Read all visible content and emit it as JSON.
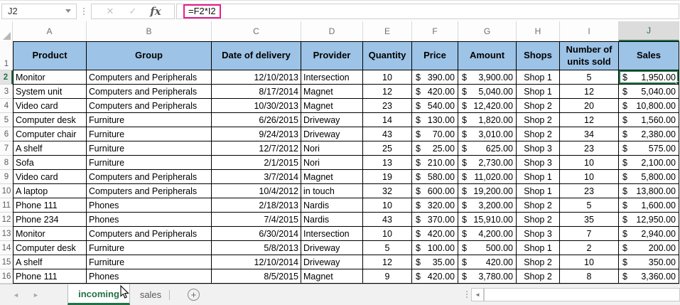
{
  "formula_bar": {
    "cell_reference": "J2",
    "formula": "=F2*I2",
    "cancel_glyph": "✕",
    "enter_glyph": "✓",
    "fx_label": "fx"
  },
  "colors": {
    "header_fill": "#9dc3e6",
    "excel_green": "#217346",
    "formula_highlight": "#e81d8e",
    "selected_header_fill": "#dcdcdc"
  },
  "grid": {
    "column_letters": [
      "A",
      "B",
      "C",
      "D",
      "E",
      "F",
      "G",
      "H",
      "I",
      "J"
    ],
    "selected_column": "J",
    "row_numbers": [
      "1",
      "2",
      "3",
      "4",
      "5",
      "6",
      "7",
      "8",
      "9",
      "10",
      "11",
      "12",
      "13",
      "14",
      "15",
      "16"
    ],
    "selected_row": "2",
    "selected_cell": "J2",
    "currency_symbol": "$",
    "header_row": [
      "Product",
      "Group",
      "Date of delivery",
      "Provider",
      "Quantity",
      "Price",
      "Amount",
      "Shops",
      "Number of units sold",
      "Sales"
    ],
    "rows": [
      {
        "cells": [
          "Monitor",
          "Computers and Peripherals",
          "12/10/2013",
          "Intersection",
          "10",
          "390.00",
          "3,900.00",
          "Shop 1",
          "5",
          "1,950.00"
        ]
      },
      {
        "cells": [
          "System unit",
          "Computers and Peripherals",
          "8/17/2014",
          "Magnet",
          "12",
          "420.00",
          "5,040.00",
          "Shop 1",
          "12",
          "5,040.00"
        ]
      },
      {
        "cells": [
          "Video card",
          "Computers and Peripherals",
          "10/30/2013",
          "Magnet",
          "23",
          "540.00",
          "12,420.00",
          "Shop 2",
          "20",
          "10,800.00"
        ]
      },
      {
        "cells": [
          "Computer desk",
          "Furniture",
          "6/26/2015",
          "Driveway",
          "14",
          "130.00",
          "1,820.00",
          "Shop 2",
          "12",
          "1,560.00"
        ]
      },
      {
        "cells": [
          "Computer chair",
          "Furniture",
          "9/24/2013",
          "Driveway",
          "43",
          "70.00",
          "3,010.00",
          "Shop 2",
          "34",
          "2,380.00"
        ]
      },
      {
        "cells": [
          "A shelf",
          "Furniture",
          "12/7/2012",
          "Nori",
          "25",
          "25.00",
          "625.00",
          "Shop 3",
          "23",
          "575.00"
        ]
      },
      {
        "cells": [
          "Sofa",
          "Furniture",
          "2/1/2015",
          "Nori",
          "13",
          "210.00",
          "2,730.00",
          "Shop 3",
          "10",
          "2,100.00"
        ]
      },
      {
        "cells": [
          "Video card",
          "Computers and Peripherals",
          "3/7/2014",
          "Magnet",
          "19",
          "580.00",
          "11,020.00",
          "Shop 1",
          "10",
          "5,800.00"
        ]
      },
      {
        "cells": [
          "A laptop",
          "Computers and Peripherals",
          "10/4/2012",
          "in touch",
          "32",
          "600.00",
          "19,200.00",
          "Shop 1",
          "23",
          "13,800.00"
        ]
      },
      {
        "cells": [
          "Phone 111",
          "Phones",
          "2/18/2013",
          "Nardis",
          "10",
          "320.00",
          "3,200.00",
          "Shop 2",
          "5",
          "1,600.00"
        ]
      },
      {
        "cells": [
          "Phone 234",
          "Phones",
          "7/4/2015",
          "Nardis",
          "43",
          "370.00",
          "15,910.00",
          "Shop 2",
          "35",
          "12,950.00"
        ]
      },
      {
        "cells": [
          "Monitor",
          "Computers and Peripherals",
          "6/30/2014",
          "Intersection",
          "10",
          "420.00",
          "4,200.00",
          "Shop 3",
          "7",
          "2,940.00"
        ]
      },
      {
        "cells": [
          "Computer desk",
          "Furniture",
          "5/8/2013",
          "Driveway",
          "5",
          "100.00",
          "500.00",
          "Shop 1",
          "2",
          "200.00"
        ]
      },
      {
        "cells": [
          "A shelf",
          "Furniture",
          "12/10/2014",
          "Driveway",
          "12",
          "35.00",
          "420.00",
          "Shop 2",
          "10",
          "350.00"
        ]
      },
      {
        "cells": [
          "Phone 111",
          "Phones",
          "8/5/2015",
          "Magnet",
          "9",
          "420.00",
          "3,780.00",
          "Shop 2",
          "8",
          "3,360.00"
        ]
      }
    ]
  },
  "sheet_tabs": {
    "nav_left_glyph": "◄",
    "nav_right_glyph": "►",
    "tabs": [
      {
        "label": "incoming",
        "active": true
      },
      {
        "label": "sales",
        "active": false
      }
    ],
    "add_glyph": "+"
  },
  "scrollbar": {
    "left_arrow_glyph": "◄"
  }
}
